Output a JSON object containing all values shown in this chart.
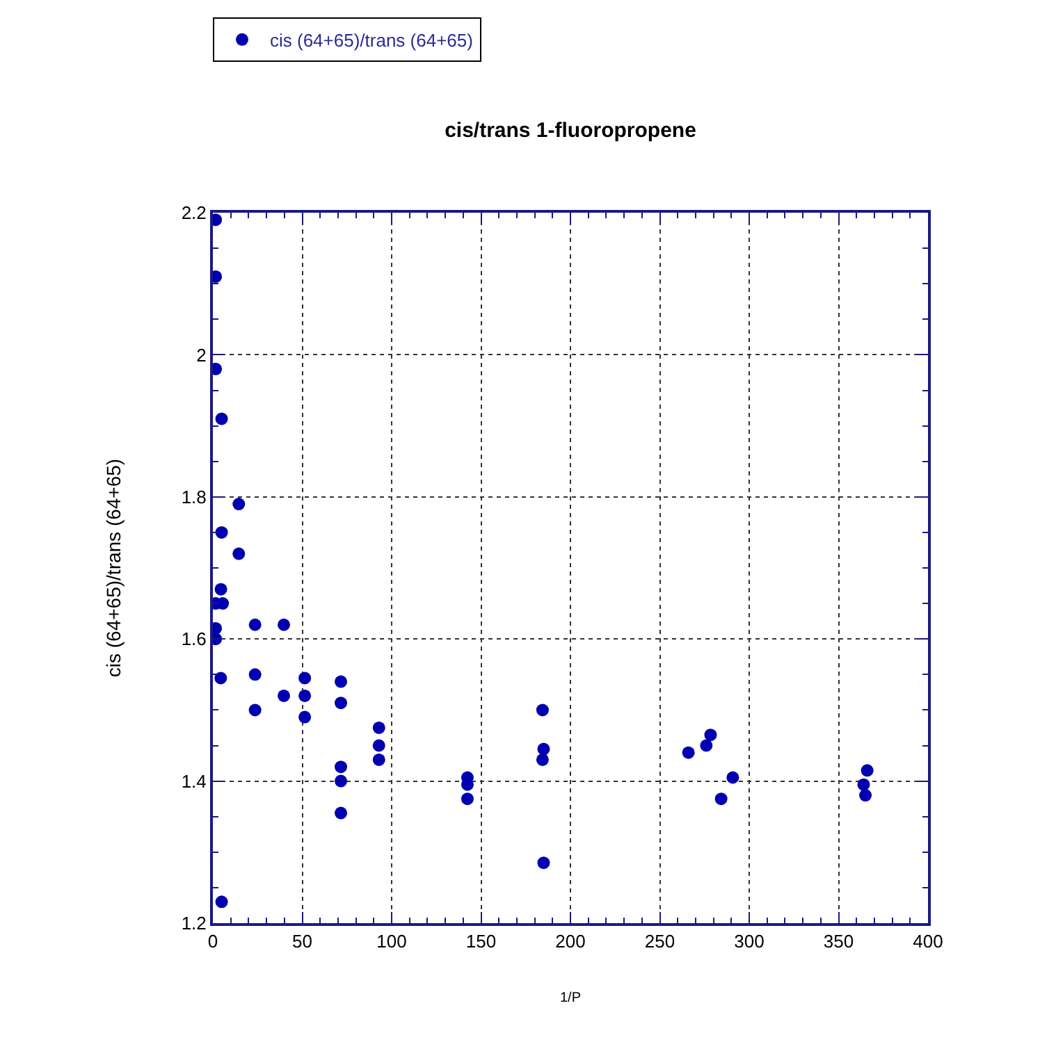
{
  "chart_data": {
    "type": "scatter",
    "title": "cis/trans 1-fluoropropene",
    "xlabel": "1/P",
    "ylabel": "cis (64+65)/trans (64+65)",
    "series": [
      {
        "name": "cis (64+65)/trans (64+65)",
        "color": "#0000b0",
        "x": [
          1.6,
          1.6,
          1.6,
          4.9,
          14.5,
          4.9,
          14.5,
          4.5,
          1.6,
          5.5,
          1.6,
          1.6,
          4.4,
          4.9,
          23.6,
          39.7,
          23.6,
          23.6,
          39.7,
          51.4,
          51.4,
          51.4,
          71.6,
          71.6,
          71.6,
          71.6,
          71.6,
          92.9,
          92.9,
          92.9,
          142.4,
          142.4,
          142.4,
          184.4,
          185,
          184.4,
          185,
          266,
          276,
          278.4,
          290.8,
          284.3,
          366,
          364,
          365
        ],
        "values": [
          2.19,
          2.11,
          1.98,
          1.91,
          1.79,
          1.75,
          1.72,
          1.67,
          1.65,
          1.65,
          1.615,
          1.6,
          1.545,
          1.23,
          1.62,
          1.62,
          1.55,
          1.5,
          1.52,
          1.545,
          1.52,
          1.49,
          1.54,
          1.51,
          1.42,
          1.4,
          1.355,
          1.475,
          1.45,
          1.43,
          1.405,
          1.395,
          1.375,
          1.5,
          1.445,
          1.43,
          1.285,
          1.44,
          1.45,
          1.465,
          1.405,
          1.375,
          1.415,
          1.395,
          1.38
        ]
      }
    ],
    "xlim": [
      0,
      400
    ],
    "xticks": [
      0,
      50,
      100,
      150,
      200,
      250,
      300,
      350,
      400
    ],
    "ylim": [
      1.2,
      2.2
    ],
    "yticks": [
      1.2,
      1.4,
      1.6,
      1.8,
      2,
      2.2
    ],
    "grid": true,
    "legend": "top left",
    "marker": "circle"
  }
}
